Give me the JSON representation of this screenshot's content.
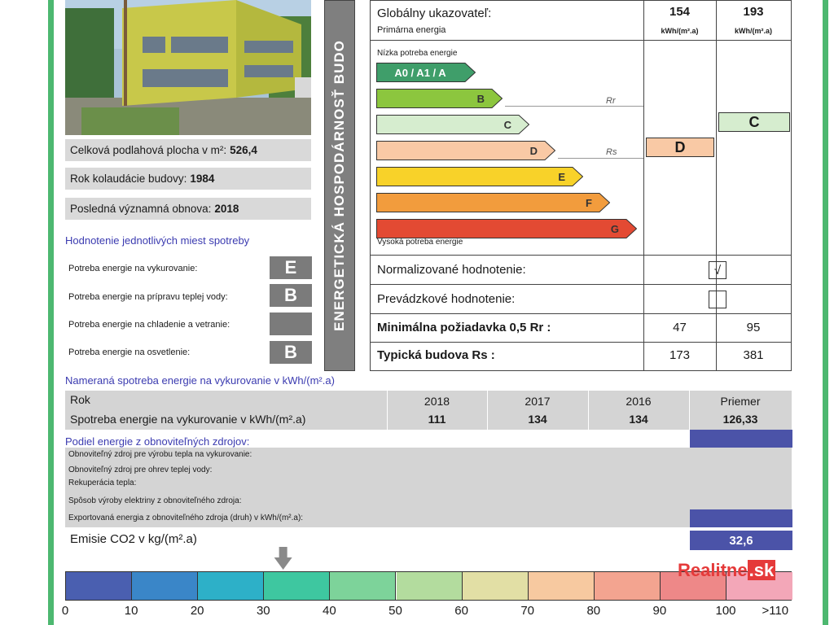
{
  "info": {
    "floor_area_label": "Celková podlahová plocha v m²:",
    "floor_area_value": "526,4",
    "approval_year_label": "Rok kolaudácie budovy:",
    "approval_year_value": "1984",
    "renovation_label": "Posledná významná obnova:",
    "renovation_value": "2018"
  },
  "usage": {
    "title": "Hodnotenie jednotlivých miest spotreby",
    "items": [
      {
        "label": "Potreba energie na vykurovanie:",
        "class": "E"
      },
      {
        "label": "Potreba energie na prípravu teplej vody:",
        "class": "B"
      },
      {
        "label": "Potreba energie na chladenie a vetranie:",
        "class": ""
      },
      {
        "label": "Potreba energie na osvetlenie:",
        "class": "B"
      }
    ]
  },
  "banner": "ENERGETICKÁ HOSPODÁRNOSŤ BUDO",
  "global": {
    "title": "Globálny ukazovateľ:",
    "subtitle": "Primárna energia",
    "value1": "154",
    "value2": "193",
    "unit": "kWh/(m².a)"
  },
  "scale": {
    "low_label": "Nízka potreba energie",
    "high_label": "Vysoká potreba energie",
    "classes": [
      {
        "label": "A0 / A1 / A",
        "color": "#3f9e6a"
      },
      {
        "label": "B",
        "color": "#8cc63e"
      },
      {
        "label": "C",
        "color": "#d6edcf"
      },
      {
        "label": "D",
        "color": "#f9c9a5"
      },
      {
        "label": "E",
        "color": "#f8d229"
      },
      {
        "label": "F",
        "color": "#f29c3d"
      },
      {
        "label": "G",
        "color": "#e34a33"
      }
    ],
    "rr_label": "Rr",
    "rs_label": "Rs",
    "rating1": "D",
    "rating2": "C"
  },
  "evaluation": {
    "normalized_label": "Normalizované hodnotenie:",
    "normalized_check": "√",
    "operational_label": "Prevádzkové hodnotenie:",
    "min_req_label": "Minimálna požiadavka 0,5 Rr :",
    "min_req_1": "47",
    "min_req_2": "95",
    "typical_label": "Typická budova Rs :",
    "typical_1": "173",
    "typical_2": "381"
  },
  "measured": {
    "title": "Nameraná spotreba energie na vykurovanie v kWh/(m².a)",
    "year_label": "Rok",
    "consumption_label": "Spotreba energie na vykurovanie v kWh/(m².a)",
    "columns": [
      {
        "year": "2018",
        "value": "111"
      },
      {
        "year": "2017",
        "value": "134"
      },
      {
        "year": "2016",
        "value": "134"
      },
      {
        "year": "Priemer",
        "value": "126,33"
      }
    ]
  },
  "renewables": {
    "title": "Podiel energie z obnoviteľných zdrojov:",
    "lines": [
      "Obnoviteľný zdroj pre výrobu tepla na vykurovanie:",
      "Obnoviteľný zdroj pre ohrev teplej vody:",
      "Rekuperácia tepla:",
      "Spôsob výroby elektriny z obnoviteľného zdroja:",
      "Exportovaná energia z obnoviteľného zdroja (druh) v kWh/(m².a):"
    ]
  },
  "emissions": {
    "label": "Emisie CO2 v kg/(m².a)",
    "value": "32,6",
    "ticks": [
      "0",
      "10",
      "20",
      "30",
      "40",
      "50",
      "60",
      "70",
      "80",
      "90",
      "100",
      ">110"
    ],
    "marker_value": 33
  },
  "watermark": {
    "name": "Realitne",
    "tld": ".sk"
  }
}
